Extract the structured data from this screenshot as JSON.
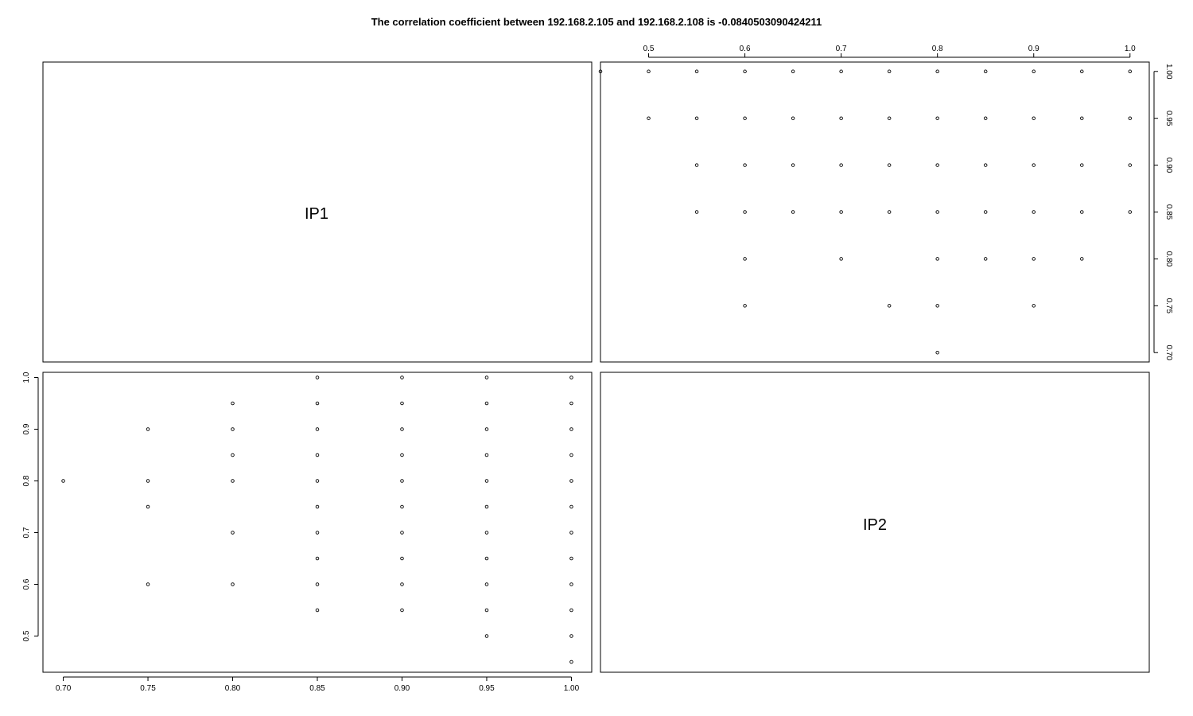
{
  "title": "The correlation coefficient between 192.168.2.105 and 192.168.2.108 is -0.0840503090424211",
  "diagonal_labels": [
    "IP1",
    "IP2"
  ],
  "chart_data": [
    {
      "type": "scatter",
      "panel": "top-right",
      "x_axis_side": "top",
      "y_axis_side": "right",
      "xlim": [
        0.45,
        1.02
      ],
      "ylim": [
        0.69,
        1.01
      ],
      "x_ticks": [
        "0.5",
        "0.6",
        "0.7",
        "0.8",
        "0.9",
        "1.0"
      ],
      "y_ticks": [
        "0.70",
        "0.75",
        "0.80",
        "0.85",
        "0.90",
        "0.95",
        "1.00"
      ],
      "points": [
        [
          0.45,
          1.0
        ],
        [
          0.5,
          1.0
        ],
        [
          0.55,
          1.0
        ],
        [
          0.6,
          1.0
        ],
        [
          0.65,
          1.0
        ],
        [
          0.7,
          1.0
        ],
        [
          0.75,
          1.0
        ],
        [
          0.8,
          1.0
        ],
        [
          0.85,
          1.0
        ],
        [
          0.9,
          1.0
        ],
        [
          0.95,
          1.0
        ],
        [
          1.0,
          1.0
        ],
        [
          0.5,
          0.95
        ],
        [
          0.55,
          0.95
        ],
        [
          0.6,
          0.95
        ],
        [
          0.65,
          0.95
        ],
        [
          0.7,
          0.95
        ],
        [
          0.75,
          0.95
        ],
        [
          0.8,
          0.95
        ],
        [
          0.85,
          0.95
        ],
        [
          0.9,
          0.95
        ],
        [
          0.95,
          0.95
        ],
        [
          1.0,
          0.95
        ],
        [
          0.55,
          0.9
        ],
        [
          0.6,
          0.9
        ],
        [
          0.65,
          0.9
        ],
        [
          0.7,
          0.9
        ],
        [
          0.75,
          0.9
        ],
        [
          0.8,
          0.9
        ],
        [
          0.85,
          0.9
        ],
        [
          0.9,
          0.9
        ],
        [
          0.95,
          0.9
        ],
        [
          1.0,
          0.9
        ],
        [
          0.55,
          0.85
        ],
        [
          0.6,
          0.85
        ],
        [
          0.65,
          0.85
        ],
        [
          0.7,
          0.85
        ],
        [
          0.75,
          0.85
        ],
        [
          0.8,
          0.85
        ],
        [
          0.85,
          0.85
        ],
        [
          0.9,
          0.85
        ],
        [
          0.95,
          0.85
        ],
        [
          1.0,
          0.85
        ],
        [
          0.6,
          0.8
        ],
        [
          0.7,
          0.8
        ],
        [
          0.8,
          0.8
        ],
        [
          0.85,
          0.8
        ],
        [
          0.9,
          0.8
        ],
        [
          0.95,
          0.8
        ],
        [
          0.6,
          0.75
        ],
        [
          0.75,
          0.75
        ],
        [
          0.8,
          0.75
        ],
        [
          0.9,
          0.75
        ],
        [
          0.8,
          0.7
        ]
      ]
    },
    {
      "type": "scatter",
      "panel": "bottom-left",
      "x_axis_side": "bottom",
      "y_axis_side": "left",
      "xlim": [
        0.688,
        1.012
      ],
      "ylim": [
        0.43,
        1.01
      ],
      "x_ticks": [
        "0.70",
        "0.75",
        "0.80",
        "0.85",
        "0.90",
        "0.95",
        "1.00"
      ],
      "y_ticks": [
        "0.5",
        "0.6",
        "0.7",
        "0.8",
        "0.9",
        "1.0"
      ],
      "points": [
        [
          0.7,
          0.8
        ],
        [
          0.75,
          0.9
        ],
        [
          0.75,
          0.8
        ],
        [
          0.75,
          0.75
        ],
        [
          0.75,
          0.6
        ],
        [
          0.8,
          0.95
        ],
        [
          0.8,
          0.9
        ],
        [
          0.8,
          0.85
        ],
        [
          0.8,
          0.8
        ],
        [
          0.8,
          0.7
        ],
        [
          0.8,
          0.6
        ],
        [
          0.85,
          1.0
        ],
        [
          0.85,
          0.95
        ],
        [
          0.85,
          0.9
        ],
        [
          0.85,
          0.85
        ],
        [
          0.85,
          0.8
        ],
        [
          0.85,
          0.75
        ],
        [
          0.85,
          0.7
        ],
        [
          0.85,
          0.65
        ],
        [
          0.85,
          0.6
        ],
        [
          0.85,
          0.55
        ],
        [
          0.9,
          1.0
        ],
        [
          0.9,
          0.95
        ],
        [
          0.9,
          0.9
        ],
        [
          0.9,
          0.85
        ],
        [
          0.9,
          0.8
        ],
        [
          0.9,
          0.75
        ],
        [
          0.9,
          0.7
        ],
        [
          0.9,
          0.65
        ],
        [
          0.9,
          0.6
        ],
        [
          0.9,
          0.55
        ],
        [
          0.95,
          1.0
        ],
        [
          0.95,
          0.95
        ],
        [
          0.95,
          0.9
        ],
        [
          0.95,
          0.85
        ],
        [
          0.95,
          0.8
        ],
        [
          0.95,
          0.75
        ],
        [
          0.95,
          0.7
        ],
        [
          0.95,
          0.65
        ],
        [
          0.95,
          0.6
        ],
        [
          0.95,
          0.55
        ],
        [
          0.95,
          0.5
        ],
        [
          1.0,
          1.0
        ],
        [
          1.0,
          0.95
        ],
        [
          1.0,
          0.9
        ],
        [
          1.0,
          0.85
        ],
        [
          1.0,
          0.8
        ],
        [
          1.0,
          0.75
        ],
        [
          1.0,
          0.7
        ],
        [
          1.0,
          0.65
        ],
        [
          1.0,
          0.6
        ],
        [
          1.0,
          0.55
        ],
        [
          1.0,
          0.5
        ],
        [
          1.0,
          0.45
        ]
      ]
    }
  ]
}
